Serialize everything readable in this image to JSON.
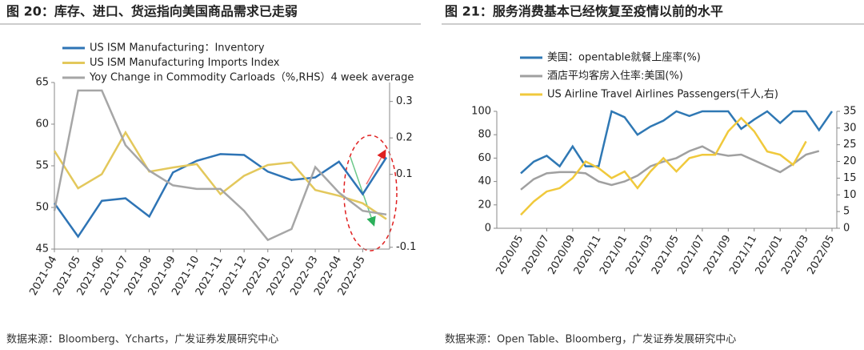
{
  "chart_data": [
    {
      "type": "line",
      "title": "图 20：库存、进口、货运指向美国商品需求已走弱",
      "categories": [
        "2021-04",
        "2021-05",
        "2021-06",
        "2021-07",
        "2021-08",
        "2021-09",
        "2021-10",
        "2021-11",
        "2021-12",
        "2022-01",
        "2022-02",
        "2022-03",
        "2022-04",
        "2022-05",
        null
      ],
      "series": [
        {
          "name": "US ISM Manufacturing：Inventory",
          "color": "#2e74b5",
          "axis": "y",
          "values": [
            50.5,
            46.5,
            50.8,
            51.1,
            48.9,
            54.2,
            55.6,
            56.4,
            56.3,
            54.3,
            53.3,
            53.6,
            55.5,
            51.6,
            56.0
          ]
        },
        {
          "name": "US ISM Manufacturing Imports Index",
          "color": "#e3c85c",
          "axis": "y",
          "values": [
            56.8,
            52.3,
            54.0,
            59.0,
            54.3,
            54.8,
            55.2,
            51.6,
            53.8,
            55.1,
            55.4,
            52.1,
            51.4,
            50.5,
            48.6
          ]
        },
        {
          "name": "Yoy Change in Commodity Carloads（%,RHS）4 week average",
          "color": "#a6a6a6",
          "axis": "y2",
          "values": [
            0.0,
            0.33,
            0.33,
            0.18,
            0.11,
            0.07,
            0.06,
            0.06,
            0.0,
            -0.08,
            -0.05,
            0.12,
            0.05,
            0.0,
            -0.01
          ]
        }
      ],
      "ylim": [
        45,
        65
      ],
      "yticks": [
        45,
        50,
        55,
        60,
        65
      ],
      "y2lim": [
        -0.105,
        0.352
      ],
      "y2ticks": [
        -0.1,
        0.1,
        0.2,
        0.3
      ],
      "legend": "upper left",
      "source": "数据来源：Bloomberg、Ycharts，广发证券发展研究中心"
    },
    {
      "type": "line",
      "title": "图 21：服务消费基本已经恢复至疫情以前的水平",
      "categories": [
        "2020/05",
        null,
        "2020/07",
        null,
        "2020/09",
        null,
        "2020/11",
        null,
        "2021/01",
        null,
        "2021/03",
        null,
        "2021/05",
        null,
        "2021/07",
        null,
        "2021/09",
        null,
        "2021/11",
        null,
        "2022/01",
        null,
        "2022/03",
        null,
        "2022/05"
      ],
      "series": [
        {
          "name": "美国：opentable就餐上座率(%)",
          "color": "#2f78b4",
          "axis": "y",
          "values": [
            47,
            57,
            62,
            53,
            70,
            53,
            53,
            100,
            95,
            80,
            87,
            92,
            100,
            96,
            100,
            100,
            100,
            85,
            93,
            100,
            90,
            100,
            100,
            84,
            100
          ]
        },
        {
          "name": "酒店平均客房入住率:美国(%)",
          "color": "#a0a0a0",
          "axis": "y",
          "values": [
            33,
            42,
            47,
            48,
            48,
            47,
            40,
            37,
            40,
            45,
            53,
            57,
            60,
            66,
            70,
            64,
            62,
            63,
            58,
            53,
            48,
            55,
            63,
            66,
            null
          ]
        },
        {
          "name": "US Airline Travel Airlines Passengers(千人,右)",
          "color": "#f0c93c",
          "axis": "y2",
          "values": [
            4,
            8,
            11,
            12,
            15,
            20,
            18,
            15,
            17,
            12,
            17,
            21,
            17,
            21,
            22,
            22,
            29,
            33,
            29,
            23,
            22,
            19,
            26,
            null,
            null
          ]
        }
      ],
      "ylim": [
        0,
        100
      ],
      "yticks": [
        0,
        20,
        40,
        60,
        80,
        100
      ],
      "y2lim": [
        0,
        35
      ],
      "y2ticks": [
        0,
        5,
        10,
        15,
        20,
        25,
        30,
        35
      ],
      "legend": "upper left",
      "source": "数据来源：Open Table、Bloomberg，广发证券发展研究中心"
    }
  ]
}
